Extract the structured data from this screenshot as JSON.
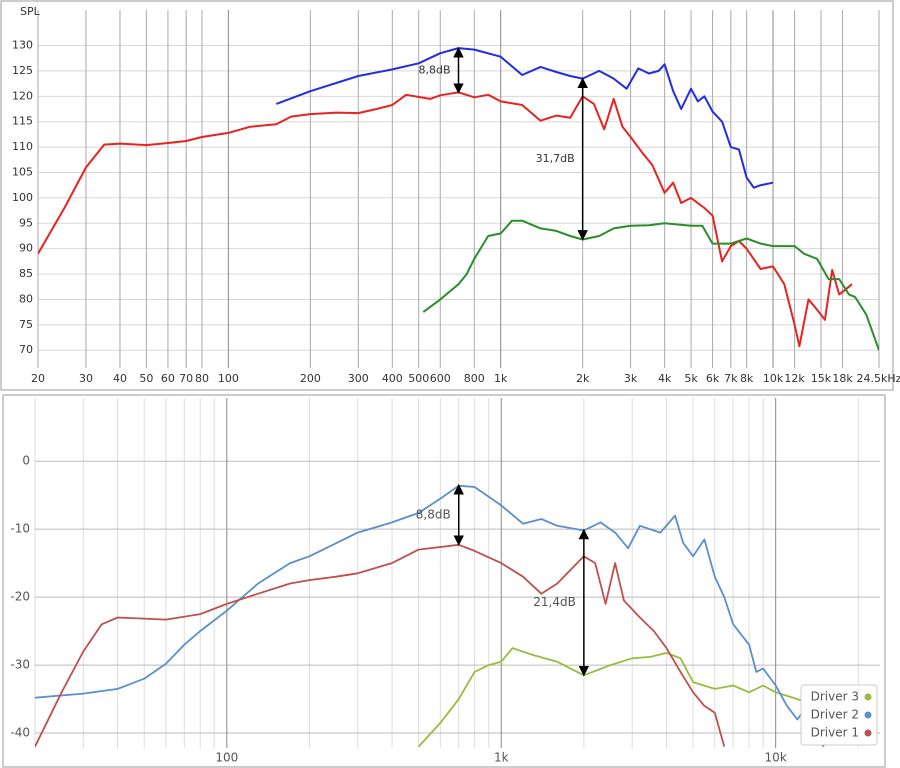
{
  "chart_data": [
    {
      "type": "line",
      "ylabel": "SPL",
      "xscale": "log",
      "xlim": [
        20,
        24500
      ],
      "ylim": [
        66.5,
        137
      ],
      "grid": true,
      "xticks": [
        20,
        30,
        40,
        50,
        60,
        70,
        80,
        100,
        200,
        300,
        400,
        500,
        600,
        800,
        {
          "value": 1000,
          "label": "1k"
        },
        {
          "value": 2000,
          "label": "2k"
        },
        {
          "value": 3000,
          "label": "3k"
        },
        {
          "value": 4000,
          "label": "4k"
        },
        {
          "value": 5000,
          "label": "5k"
        },
        {
          "value": 6000,
          "label": "6k"
        },
        {
          "value": 7000,
          "label": "7k"
        },
        {
          "value": 8000,
          "label": "8k"
        },
        {
          "value": 10000,
          "label": "10k"
        },
        {
          "value": 12000,
          "label": "12k"
        },
        {
          "value": 15000,
          "label": "15k"
        },
        {
          "value": 18000,
          "label": "18k"
        },
        {
          "value": 24500,
          "label": "24.5kHz"
        }
      ],
      "yticks": [
        70,
        75,
        80,
        85,
        90,
        95,
        100,
        105,
        110,
        115,
        120,
        125,
        130
      ],
      "series": [
        {
          "color": "#e8231f",
          "x": [
            20,
            25,
            30,
            35,
            40,
            50,
            60,
            70,
            80,
            100,
            120,
            150,
            170,
            200,
            250,
            300,
            350,
            400,
            450,
            550,
            600,
            700,
            800,
            900,
            1000,
            1200,
            1400,
            1600,
            1800,
            2000,
            2200,
            2400,
            2600,
            2800,
            3000,
            3300,
            3600,
            4000,
            4300,
            4600,
            5000,
            5600,
            6000,
            6500,
            7000,
            7500,
            8000,
            9000,
            10000,
            11000,
            12000,
            12500,
            13500,
            14500,
            15500,
            16500,
            17500,
            18500,
            19500
          ],
          "values": [
            89,
            98,
            106,
            110.5,
            110.7,
            110.4,
            110.8,
            111.2,
            112,
            112.8,
            114,
            114.5,
            116,
            116.5,
            116.8,
            116.7,
            117.5,
            118.3,
            120.3,
            119.5,
            120.2,
            120.8,
            119.8,
            120.3,
            119,
            118.3,
            115.2,
            116.2,
            115.8,
            120,
            118.5,
            113.5,
            119.5,
            114,
            112,
            109,
            106.5,
            101,
            103,
            99,
            100,
            98,
            96.5,
            87.5,
            90.5,
            91.5,
            90,
            86,
            86.5,
            83,
            75,
            70.8,
            80,
            78,
            76,
            85.8,
            81,
            82,
            83
          ]
        },
        {
          "color": "#1f2ee0",
          "x": [
            150,
            200,
            300,
            400,
            500,
            600,
            700,
            800,
            1000,
            1200,
            1400,
            1600,
            1800,
            2000,
            2300,
            2600,
            2900,
            3200,
            3500,
            3800,
            4000,
            4300,
            4600,
            5000,
            5300,
            5600,
            6000,
            6500,
            7000,
            7500,
            8000,
            8500,
            9000,
            10000
          ],
          "values": [
            118.5,
            121,
            124,
            125.3,
            126.5,
            128.5,
            129.5,
            129.2,
            127.8,
            124.2,
            125.8,
            124.8,
            124,
            123.5,
            125,
            123.5,
            121.5,
            125.5,
            124.5,
            125,
            126.3,
            121,
            117.5,
            121.5,
            119,
            120,
            117,
            115,
            110,
            109.5,
            104,
            102,
            102.5,
            103
          ]
        },
        {
          "color": "#2a8f2a",
          "x": [
            520,
            600,
            700,
            750,
            800,
            900,
            1000,
            1100,
            1200,
            1400,
            1600,
            1800,
            2000,
            2300,
            2600,
            3000,
            3500,
            4000,
            5000,
            5500,
            6000,
            7000,
            8000,
            9000,
            10000,
            12000,
            13000,
            14500,
            16000,
            17500,
            19000,
            20000,
            22000,
            24500
          ],
          "values": [
            77.5,
            80,
            83,
            85,
            88,
            92.5,
            93,
            95.5,
            95.5,
            94,
            93.5,
            92.5,
            91.8,
            92.5,
            94,
            94.5,
            94.6,
            95,
            94.5,
            94.5,
            91,
            91,
            92,
            91,
            90.5,
            90.5,
            89,
            88,
            84,
            84,
            81,
            80.5,
            77,
            70
          ]
        }
      ],
      "annotations": [
        {
          "text": "8,8dB",
          "x": 700,
          "y": [
            120.7,
            129.5
          ]
        },
        {
          "text": "31,7dB",
          "x": 2000,
          "y": [
            91.8,
            123.5
          ]
        }
      ]
    },
    {
      "type": "line",
      "xscale": "log",
      "xlim": [
        20,
        24000
      ],
      "ylim": [
        -42.2,
        9.3
      ],
      "grid": true,
      "legend": "bottom-right",
      "xticks": [
        100,
        {
          "value": 1000,
          "label": "1k"
        },
        {
          "value": 10000,
          "label": "10k"
        }
      ],
      "minor_xticks": [
        20,
        30,
        40,
        50,
        60,
        70,
        80,
        90,
        200,
        300,
        400,
        500,
        600,
        700,
        800,
        900,
        2000,
        3000,
        4000,
        5000,
        6000,
        7000,
        8000,
        9000,
        20000
      ],
      "yticks": [
        -40,
        -30,
        -20,
        -10,
        0
      ],
      "series": [
        {
          "name": "Driver 3",
          "color": "#9bbb3f",
          "x": [
            500,
            600,
            700,
            800,
            900,
            1000,
            1100,
            1300,
            1600,
            2000,
            2500,
            3000,
            3500,
            4000,
            4500,
            5000,
            6000,
            7000,
            8000,
            9000,
            10000,
            12000,
            14000,
            16000
          ],
          "values": [
            -42,
            -38.5,
            -35,
            -31,
            -30,
            -29.5,
            -27.5,
            -28.5,
            -29.5,
            -31.5,
            -30,
            -29,
            -28.8,
            -28.2,
            -29,
            -32.5,
            -33.5,
            -33,
            -34,
            -33,
            -34,
            -35,
            -36,
            -38
          ]
        },
        {
          "name": "Driver 2",
          "color": "#5b8fcc",
          "x": [
            20,
            30,
            40,
            50,
            60,
            70,
            80,
            100,
            130,
            170,
            200,
            300,
            400,
            500,
            600,
            700,
            800,
            1000,
            1200,
            1400,
            1600,
            2000,
            2300,
            2600,
            2900,
            3200,
            3800,
            4300,
            4600,
            5000,
            5500,
            6000,
            6500,
            7000,
            8000,
            8500,
            9000,
            10000,
            11000,
            12000,
            13000,
            14000,
            15000
          ],
          "values": [
            -34.8,
            -34.2,
            -33.5,
            -32,
            -29.8,
            -27,
            -25,
            -22,
            -18,
            -15,
            -14,
            -10.5,
            -9,
            -7.6,
            -5.5,
            -3.6,
            -3.8,
            -6.5,
            -9.2,
            -8.5,
            -9.5,
            -10.2,
            -9,
            -10.5,
            -12.8,
            -9.5,
            -10.5,
            -8,
            -12,
            -14,
            -11.5,
            -17,
            -20,
            -24,
            -27,
            -31,
            -30.5,
            -33,
            -36,
            -38,
            -36,
            -41,
            -42
          ]
        },
        {
          "name": "Driver 1",
          "color": "#c0504d",
          "x": [
            20,
            25,
            30,
            35,
            40,
            60,
            80,
            100,
            130,
            170,
            200,
            250,
            300,
            400,
            500,
            700,
            800,
            1000,
            1200,
            1400,
            1600,
            2000,
            2200,
            2400,
            2600,
            2800,
            3200,
            3600,
            4000,
            4500,
            5000,
            5500,
            6000,
            6500
          ],
          "values": [
            -42,
            -34,
            -28,
            -24,
            -23,
            -23.3,
            -22.5,
            -21,
            -19.5,
            -18,
            -17.5,
            -17,
            -16.5,
            -15,
            -13,
            -12.3,
            -13.2,
            -15,
            -17,
            -19.5,
            -18,
            -14,
            -15,
            -21,
            -15,
            -20.5,
            -23,
            -25,
            -27.5,
            -31,
            -34,
            -36,
            -37,
            -42
          ]
        }
      ],
      "annotations": [
        {
          "text": "8,8dB",
          "x": 700,
          "y": [
            -12.3,
            -3.5
          ]
        },
        {
          "text": "21,4dB",
          "x": 2000,
          "y": [
            -31.5,
            -10.1
          ]
        }
      ]
    }
  ]
}
